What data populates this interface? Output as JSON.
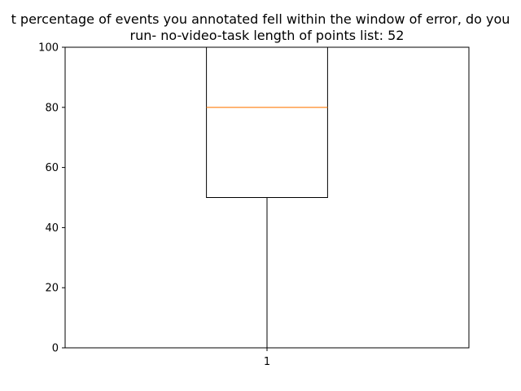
{
  "chart_data": {
    "type": "box",
    "title_lines": [
      "t percentage of events you annotated fell within the window of error, do you",
      "run-    no-video-task    length of points list: 52"
    ],
    "categories": [
      "1"
    ],
    "boxes": [
      {
        "category": "1",
        "min": 0,
        "q1": 50,
        "median": 80,
        "q3": 100,
        "max": 100
      }
    ],
    "ylim": [
      0,
      100
    ],
    "yticks": [
      0,
      20,
      40,
      60,
      80,
      100
    ],
    "xlabel": "",
    "ylabel": "",
    "grid": false,
    "colors": {
      "median": "#ff7f0e",
      "box": "#000000",
      "axes": "#000000"
    }
  }
}
